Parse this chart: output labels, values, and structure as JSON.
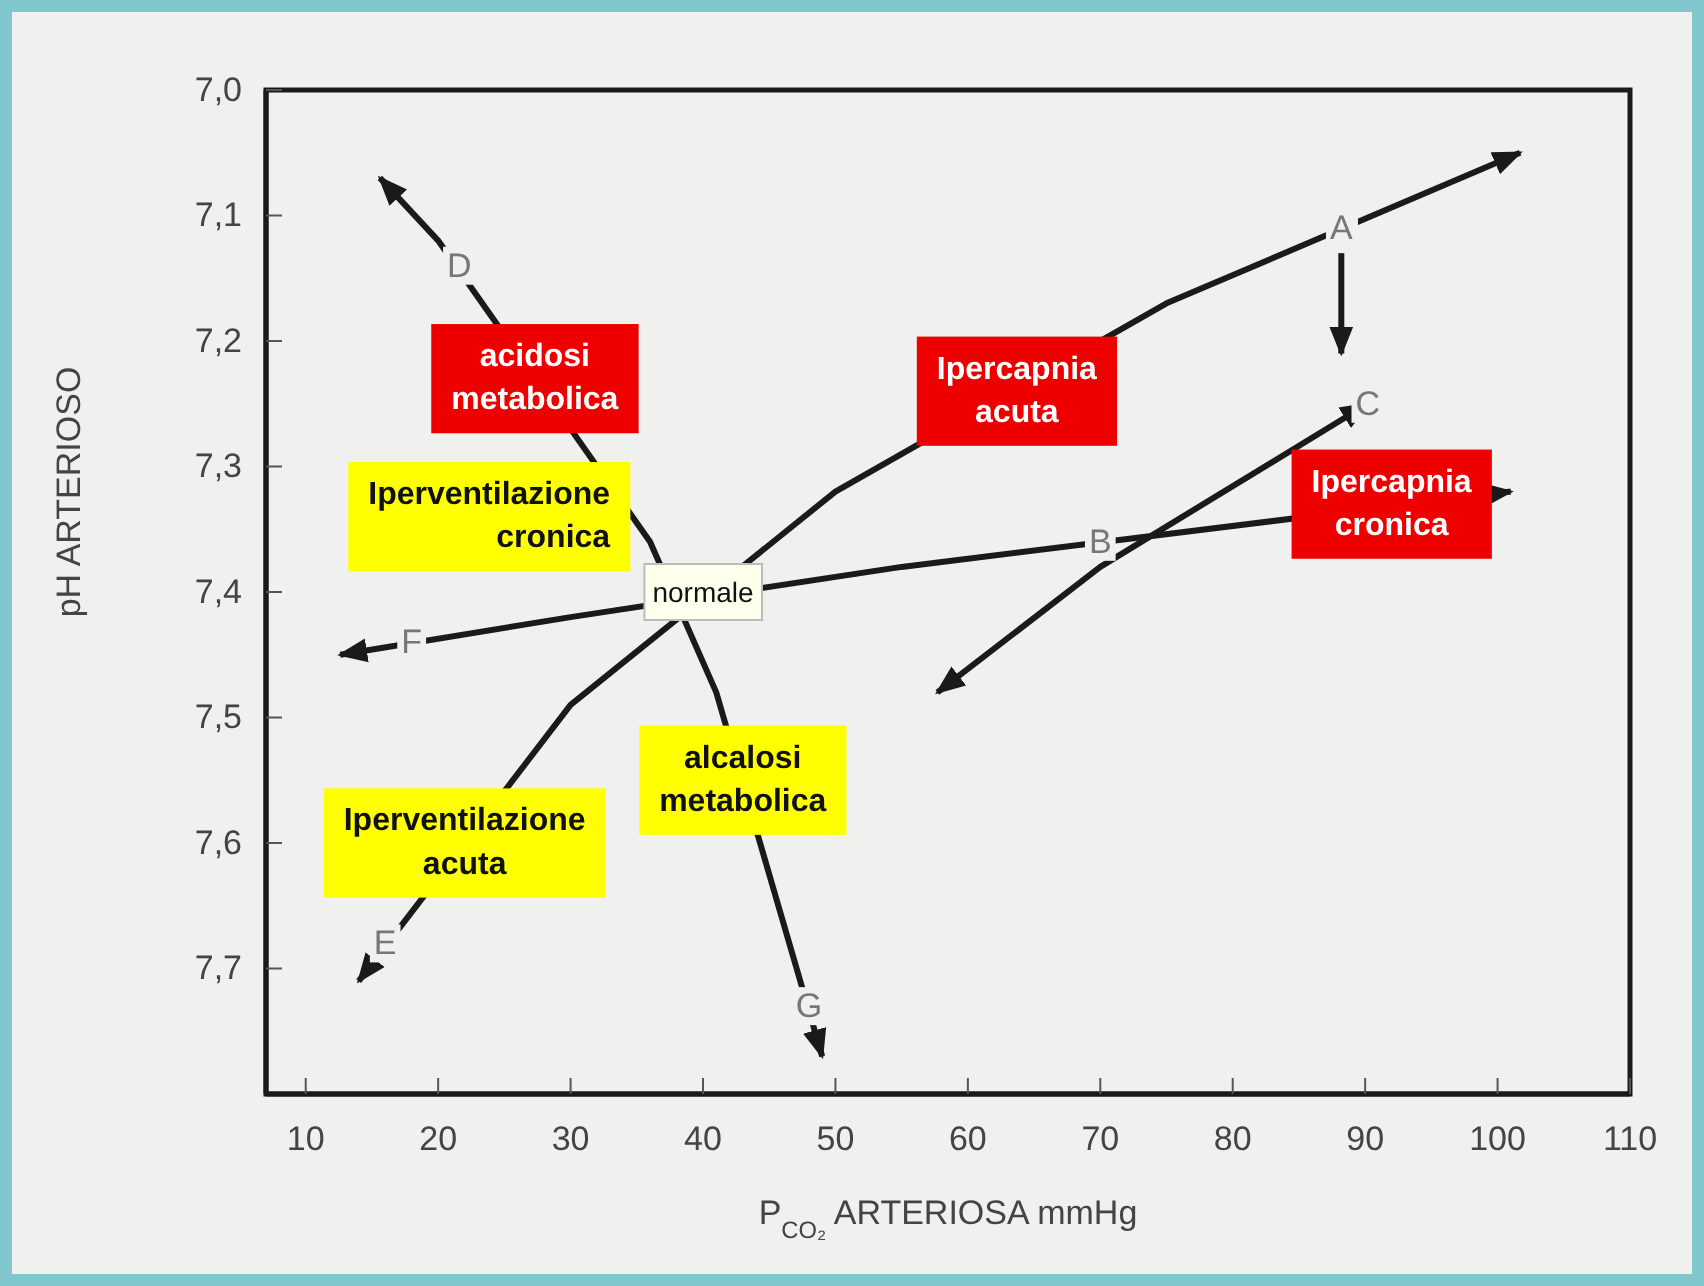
{
  "chart_data": {
    "type": "line",
    "xlabel": "P$_{CO₂}$ ARTERIOSA mmHg",
    "ylabel": "pH ARTERIOSO",
    "xlim": [
      7,
      110
    ],
    "xticks": [
      10,
      20,
      30,
      40,
      50,
      60,
      70,
      80,
      90,
      100,
      110
    ],
    "ylim": [
      7.8,
      7.0
    ],
    "yticks": [
      {
        "value": 7.0,
        "label": "7,0"
      },
      {
        "value": 7.1,
        "label": "7,1"
      },
      {
        "value": 7.2,
        "label": "7,2"
      },
      {
        "value": 7.3,
        "label": "7,3"
      },
      {
        "value": 7.4,
        "label": "7,4"
      },
      {
        "value": 7.5,
        "label": "7,5"
      },
      {
        "value": 7.6,
        "label": "7,6"
      },
      {
        "value": 7.7,
        "label": "7,7"
      }
    ],
    "marker": "none",
    "line_style": "solid",
    "series": [
      {
        "color": "#1a1a1a",
        "x": [
          14,
          30,
          50,
          75,
          101.7
        ],
        "values": [
          7.71,
          7.49,
          7.32,
          7.17,
          7.05
        ]
      },
      {
        "color": "#1a1a1a",
        "x": [
          15.6,
          20,
          36,
          41,
          49
        ],
        "values": [
          7.07,
          7.12,
          7.36,
          7.48,
          7.77
        ]
      },
      {
        "color": "#1a1a1a",
        "x": [
          12.6,
          30,
          55,
          101
        ],
        "values": [
          7.45,
          7.42,
          7.38,
          7.32
        ]
      },
      {
        "color": "#1a1a1a",
        "x": [
          57.7,
          70,
          90.2
        ],
        "values": [
          7.48,
          7.38,
          7.25
        ]
      },
      {
        "color": "#1a1a1a",
        "x": [
          88.2,
          88.2
        ],
        "values": [
          7.13,
          7.21
        ]
      }
    ],
    "annotations": [
      {
        "text": "A",
        "x": 88.2,
        "y": 7.11
      },
      {
        "text": "B",
        "x": 70,
        "y": 7.36
      },
      {
        "text": "C",
        "x": 90.2,
        "y": 7.25
      },
      {
        "text": "D",
        "x": 21.6,
        "y": 7.14
      },
      {
        "text": "E",
        "x": 16,
        "y": 7.68
      },
      {
        "text": "F",
        "x": 18,
        "y": 7.44
      },
      {
        "text": "G",
        "x": 48,
        "y": 7.73
      },
      {
        "text": "acidosi\nmetabolica",
        "x": 27.3,
        "y": 7.23
      },
      {
        "text": "Ipercapnia\nacuta",
        "x": 63.7,
        "y": 7.24
      },
      {
        "text": "Iperventilazione\ncronica",
        "x": 34.8,
        "y": 7.34
      },
      {
        "text": "normale",
        "x": 40,
        "y": 7.4
      },
      {
        "text": "Ipercapnia\ncronica",
        "x": 92,
        "y": 7.33
      },
      {
        "text": "Iperventilazione\nacuta",
        "x": 22,
        "y": 7.6
      },
      {
        "text": "alcalosi\nmetabolica",
        "x": 43,
        "y": 7.55
      }
    ]
  }
}
